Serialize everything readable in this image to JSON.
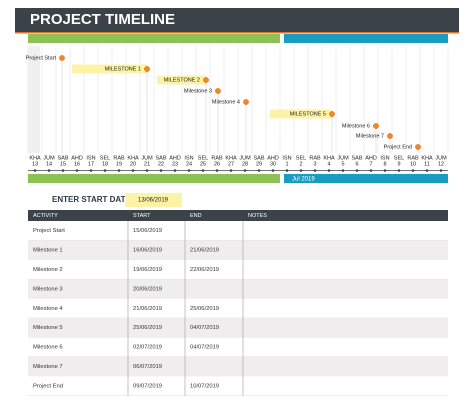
{
  "header": {
    "title": "PROJECT TIMELINE"
  },
  "timeline": {
    "milestones": [
      "Project Start",
      "MILESTONE 1",
      "MILESTONE 2",
      "Milestone 3",
      "Milestone 4",
      "MILESTONE 5",
      "Milestone 6",
      "Milestone 7",
      "Project End"
    ],
    "weekdays": [
      "KHA",
      "JUM",
      "SAB",
      "AHD",
      "ISN",
      "SEL",
      "RAB",
      "KHA",
      "JUM",
      "SAB",
      "AHD",
      "ISN",
      "SEL",
      "RAB",
      "KHA",
      "JUM",
      "SAB",
      "AHD",
      "ISN",
      "SEL",
      "RAB",
      "KHA",
      "JUM",
      "SAB",
      "AHD",
      "ISN",
      "SEL",
      "RAB",
      "KHA",
      "JUM"
    ],
    "days": [
      13,
      14,
      15,
      16,
      17,
      18,
      19,
      20,
      21,
      22,
      23,
      24,
      25,
      26,
      27,
      28,
      29,
      30,
      1,
      2,
      3,
      4,
      5,
      6,
      7,
      8,
      9,
      10,
      11,
      12
    ],
    "month_label": "Jul 2019"
  },
  "start_date": {
    "label": "ENTER START DATE:",
    "value": "13/06/2019"
  },
  "table": {
    "columns": [
      "ACTIVITY",
      "START",
      "END",
      "NOTES"
    ],
    "rows": [
      {
        "activity": "Project Start",
        "start": "15/06/2019"
      },
      {
        "activity": "Milestone 1",
        "start": "16/06/2019",
        "end": "21/06/2019"
      },
      {
        "activity": "Milestone 2",
        "start": "19/06/2019",
        "end": "22/06/2019"
      },
      {
        "activity": "Milestone 3",
        "start": "20/06/2019"
      },
      {
        "activity": "Milestone 4",
        "start": "21/06/2019",
        "end": "25/06/2019"
      },
      {
        "activity": "Milestone 5",
        "start": "25/06/2019",
        "end": "04/07/2019"
      },
      {
        "activity": "Milestone 6",
        "start": "02/07/2019",
        "end": "04/07/2019"
      },
      {
        "activity": "Milestone 7",
        "start": "06/07/2019"
      },
      {
        "activity": "Project End",
        "start": "09/07/2019",
        "end": "10/07/2019"
      }
    ]
  }
}
